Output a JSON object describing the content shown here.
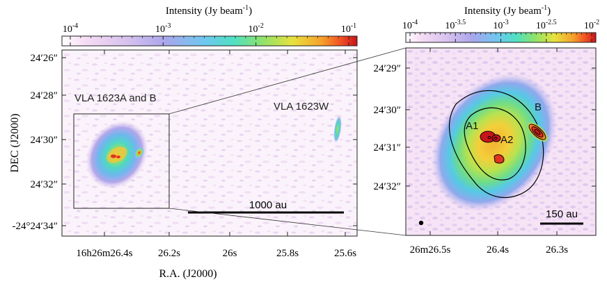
{
  "left_panel": {
    "colorbar": {
      "title": "Intensity (Jy beam",
      "title_sup": "-1",
      "title_close": ")",
      "ticks": [
        {
          "base": "10",
          "exp": "-4"
        },
        {
          "base": "10",
          "exp": "-3"
        },
        {
          "base": "10",
          "exp": "-2"
        },
        {
          "base": "10",
          "exp": "-1"
        }
      ]
    },
    "ylabel": "DEC (J2000)",
    "xlabel": "R.A. (J2000)",
    "yticks": [
      "24′26″",
      "24′28″",
      "24′30″",
      "24′32″",
      "-24°24′34″"
    ],
    "xticks": [
      "16h26m26.4s",
      "26.2s",
      "26s",
      "25.8s",
      "25.6s"
    ],
    "labels": {
      "ab": "VLA 1623A and B",
      "w": "VLA 1623W"
    },
    "scalebar": "1000 au"
  },
  "right_panel": {
    "colorbar": {
      "title": "Intensity (Jy beam",
      "title_sup": "-1",
      "title_close": ")",
      "ticks": [
        {
          "base": "10",
          "exp": "-4"
        },
        {
          "base": "10",
          "exp": "-3.5"
        },
        {
          "base": "10",
          "exp": "-3"
        },
        {
          "base": "10",
          "exp": "-2.5"
        },
        {
          "base": "10",
          "exp": "-2"
        }
      ]
    },
    "yticks": [
      "24′29″",
      "24′30″",
      "24′31″",
      "24′32″"
    ],
    "xticks": [
      "26m26.5s",
      "26.4s",
      "26.3s"
    ],
    "labels": {
      "a1": "A1",
      "a2": "A2",
      "b": "B"
    },
    "scalebar": "150 au"
  },
  "colors": {
    "background_noise": "#f3e6f6",
    "frame": "#222222"
  }
}
